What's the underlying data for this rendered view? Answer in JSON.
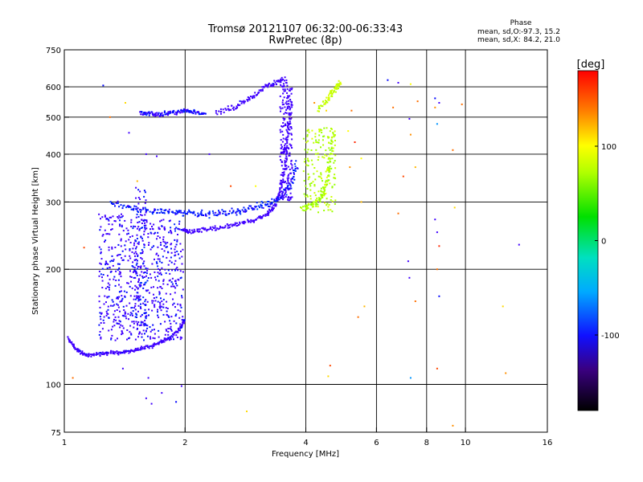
{
  "chart_data": {
    "type": "scatter",
    "title": "Tromsø 20121107 06:32:00-06:33:43",
    "subtitle": "RwPretec (8p)",
    "xlabel": "Frequency [MHz]",
    "ylabel": "Stationary phase Virtual Height [km]",
    "x_scale": "log",
    "y_scale": "log",
    "xlim": [
      1,
      16
    ],
    "ylim": [
      75,
      750
    ],
    "x_ticks": [
      1,
      2,
      4,
      6,
      8,
      10,
      16
    ],
    "y_ticks": [
      75,
      100,
      200,
      300,
      400,
      500,
      600,
      750
    ],
    "x_gridlines": [
      2,
      4,
      6,
      8,
      10
    ],
    "y_gridlines": [
      100,
      200,
      300,
      400,
      500,
      600
    ],
    "grid": true,
    "colorbar": {
      "label": "[deg]",
      "range": [
        -180,
        180
      ],
      "ticks": [
        -100,
        0,
        100
      ]
    },
    "stats": {
      "header": "Phase",
      "o_label": "mean, sd,O:",
      "o_value": "-97.3, 15.2",
      "x_label": "mean, sd,X:",
      "x_value": "84.2, 21.0"
    },
    "traces": [
      {
        "x": [
          1.02,
          1.06,
          1.1,
          1.15,
          1.22,
          1.3,
          1.38,
          1.46,
          1.55,
          1.65,
          1.75,
          1.85,
          1.95,
          2.0
        ],
        "y": [
          132,
          125,
          121,
          119,
          120,
          121,
          121,
          122,
          124,
          126,
          129,
          133,
          140,
          148
        ],
        "phase": -110,
        "spread": 0.015
      },
      {
        "x": [
          1.98,
          2.05,
          2.2,
          2.4,
          2.6,
          2.8,
          3.0,
          3.2,
          3.35,
          3.45,
          3.55,
          3.62,
          3.66
        ],
        "y": [
          252,
          250,
          253,
          256,
          260,
          265,
          270,
          278,
          292,
          320,
          370,
          450,
          560
        ],
        "phase": -115,
        "spread": 0.02
      },
      {
        "x": [
          1.3,
          1.45,
          1.6,
          1.75,
          1.9,
          2.05,
          2.2,
          2.4,
          2.6,
          2.8,
          3.0,
          3.2,
          3.4,
          3.55,
          3.7,
          3.8
        ],
        "y": [
          300,
          292,
          286,
          283,
          281,
          280,
          279,
          280,
          282,
          286,
          290,
          296,
          304,
          318,
          340,
          380
        ],
        "phase": -95,
        "spread": 0.03
      },
      {
        "x": [
          1.55,
          1.62,
          1.7,
          1.8,
          1.9,
          2.0,
          2.1,
          2.25
        ],
        "y": [
          515,
          512,
          508,
          510,
          515,
          520,
          515,
          510
        ],
        "phase": -100,
        "spread": 0.02
      },
      {
        "x": [
          2.4,
          2.6,
          2.8,
          3.0,
          3.2,
          3.4,
          3.55
        ],
        "y": [
          510,
          525,
          545,
          570,
          600,
          620,
          630
        ],
        "phase": -112,
        "spread": 0.025
      },
      {
        "x": [
          3.9,
          4.1,
          4.3,
          4.45,
          4.55,
          4.62,
          4.68
        ],
        "y": [
          290,
          292,
          300,
          318,
          350,
          400,
          470
        ],
        "phase": 85,
        "spread": 0.03
      },
      {
        "x": [
          4.3,
          4.5,
          4.65,
          4.8,
          4.9
        ],
        "y": [
          520,
          555,
          580,
          600,
          615
        ],
        "phase": 95,
        "spread": 0.03
      }
    ],
    "clouds": [
      {
        "x_range": [
          1.22,
          1.55
        ],
        "y_range": [
          130,
          280
        ],
        "phase": -105,
        "count": 340
      },
      {
        "x_range": [
          1.55,
          1.98
        ],
        "y_range": [
          130,
          270
        ],
        "phase": -105,
        "count": 330
      },
      {
        "x_range": [
          1.5,
          1.6
        ],
        "y_range": [
          140,
          330
        ],
        "phase": -100,
        "count": 110
      },
      {
        "x_range": [
          3.45,
          3.7
        ],
        "y_range": [
          300,
          620
        ],
        "phase": -118,
        "count": 220
      },
      {
        "x_range": [
          3.95,
          4.75
        ],
        "y_range": [
          280,
          470
        ],
        "phase": 90,
        "count": 160
      }
    ],
    "stray_points": [
      {
        "x": 1.25,
        "y": 605,
        "phase": -100
      },
      {
        "x": 1.3,
        "y": 500,
        "phase": 150
      },
      {
        "x": 1.42,
        "y": 545,
        "phase": 120
      },
      {
        "x": 1.12,
        "y": 228,
        "phase": 160
      },
      {
        "x": 1.05,
        "y": 104,
        "phase": 150
      },
      {
        "x": 1.45,
        "y": 455,
        "phase": -120
      },
      {
        "x": 1.52,
        "y": 340,
        "phase": 130
      },
      {
        "x": 1.4,
        "y": 110,
        "phase": -115
      },
      {
        "x": 1.62,
        "y": 104,
        "phase": -110
      },
      {
        "x": 1.75,
        "y": 95,
        "phase": -120
      },
      {
        "x": 1.6,
        "y": 92,
        "phase": -110
      },
      {
        "x": 1.65,
        "y": 89,
        "phase": -105
      },
      {
        "x": 1.9,
        "y": 90,
        "phase": -100
      },
      {
        "x": 1.96,
        "y": 99,
        "phase": -110
      },
      {
        "x": 1.6,
        "y": 400,
        "phase": -110
      },
      {
        "x": 1.7,
        "y": 395,
        "phase": -115
      },
      {
        "x": 2.3,
        "y": 400,
        "phase": -115
      },
      {
        "x": 2.6,
        "y": 330,
        "phase": 160
      },
      {
        "x": 2.85,
        "y": 85,
        "phase": 120
      },
      {
        "x": 3.0,
        "y": 330,
        "phase": 110
      },
      {
        "x": 3.3,
        "y": 290,
        "phase": -110
      },
      {
        "x": 4.2,
        "y": 545,
        "phase": 140
      },
      {
        "x": 4.5,
        "y": 520,
        "phase": 120
      },
      {
        "x": 4.6,
        "y": 112,
        "phase": 160
      },
      {
        "x": 4.55,
        "y": 105,
        "phase": 120
      },
      {
        "x": 5.1,
        "y": 460,
        "phase": 110
      },
      {
        "x": 5.3,
        "y": 430,
        "phase": 170
      },
      {
        "x": 5.2,
        "y": 520,
        "phase": 150
      },
      {
        "x": 5.15,
        "y": 370,
        "phase": 140
      },
      {
        "x": 5.4,
        "y": 150,
        "phase": 150
      },
      {
        "x": 5.6,
        "y": 160,
        "phase": 130
      },
      {
        "x": 6.4,
        "y": 625,
        "phase": -100
      },
      {
        "x": 6.8,
        "y": 615,
        "phase": -110
      },
      {
        "x": 6.8,
        "y": 280,
        "phase": 150
      },
      {
        "x": 6.6,
        "y": 530,
        "phase": 150
      },
      {
        "x": 7.0,
        "y": 350,
        "phase": 160
      },
      {
        "x": 7.3,
        "y": 610,
        "phase": 110
      },
      {
        "x": 7.2,
        "y": 210,
        "phase": -115
      },
      {
        "x": 7.25,
        "y": 190,
        "phase": -120
      },
      {
        "x": 7.3,
        "y": 450,
        "phase": 140
      },
      {
        "x": 7.3,
        "y": 104,
        "phase": -60
      },
      {
        "x": 7.5,
        "y": 370,
        "phase": 130
      },
      {
        "x": 7.6,
        "y": 550,
        "phase": 150
      },
      {
        "x": 7.25,
        "y": 495,
        "phase": -110
      },
      {
        "x": 7.5,
        "y": 165,
        "phase": 150
      },
      {
        "x": 8.4,
        "y": 560,
        "phase": -100
      },
      {
        "x": 8.4,
        "y": 530,
        "phase": 140
      },
      {
        "x": 8.5,
        "y": 480,
        "phase": -60
      },
      {
        "x": 8.6,
        "y": 545,
        "phase": -110
      },
      {
        "x": 8.4,
        "y": 270,
        "phase": -115
      },
      {
        "x": 8.5,
        "y": 250,
        "phase": -110
      },
      {
        "x": 8.6,
        "y": 230,
        "phase": 170
      },
      {
        "x": 8.5,
        "y": 200,
        "phase": 150
      },
      {
        "x": 8.5,
        "y": 110,
        "phase": 160
      },
      {
        "x": 8.6,
        "y": 170,
        "phase": -100
      },
      {
        "x": 9.3,
        "y": 410,
        "phase": 150
      },
      {
        "x": 9.4,
        "y": 290,
        "phase": 120
      },
      {
        "x": 9.3,
        "y": 78,
        "phase": 140
      },
      {
        "x": 9.8,
        "y": 540,
        "phase": 150
      },
      {
        "x": 12.4,
        "y": 160,
        "phase": 120
      },
      {
        "x": 12.6,
        "y": 107,
        "phase": 140
      },
      {
        "x": 13.6,
        "y": 232,
        "phase": -110
      },
      {
        "x": 5.5,
        "y": 390,
        "phase": 110
      },
      {
        "x": 5.5,
        "y": 300,
        "phase": 130
      }
    ]
  }
}
